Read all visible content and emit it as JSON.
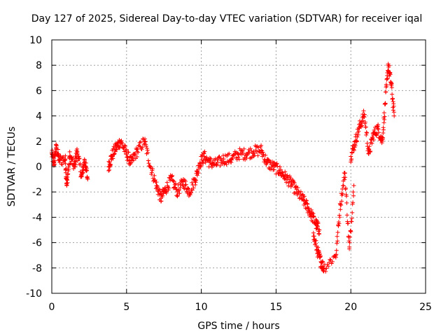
{
  "chart_data": {
    "type": "scatter",
    "title": "Day 127 of 2025, Sidereal Day-to-day VTEC variation (SDTVAR) for receiver iqal",
    "xlabel": "GPS time / hours",
    "ylabel": "SDTVAR / TECUs",
    "xlim": [
      0,
      25
    ],
    "ylim": [
      -10,
      10
    ],
    "xticks": [
      "0",
      "5",
      "10",
      "15",
      "20",
      "25"
    ],
    "yticks": [
      "10",
      "8",
      "6",
      "4",
      "2",
      "0",
      "-2",
      "-4",
      "-6",
      "-8",
      "-10"
    ],
    "grid": true,
    "marker": "+",
    "color": "#ff0000",
    "series": [
      {
        "name": "SDTVAR",
        "trace": [
          [
            0.0,
            1.0
          ],
          [
            0.15,
            0.3
          ],
          [
            0.3,
            1.5
          ],
          [
            0.5,
            0.5
          ],
          [
            0.9,
            0.6
          ],
          [
            1.0,
            -1.5
          ],
          [
            1.2,
            0.8
          ],
          [
            1.5,
            0.0
          ],
          [
            1.7,
            1.2
          ],
          [
            2.0,
            -0.8
          ],
          [
            2.2,
            0.5
          ],
          [
            2.4,
            -1.0
          ],
          [
            3.8,
            0.0
          ],
          [
            4.0,
            0.8
          ],
          [
            4.3,
            1.5
          ],
          [
            4.6,
            2.0
          ],
          [
            5.0,
            1.0
          ],
          [
            5.3,
            0.3
          ],
          [
            5.7,
            1.2
          ],
          [
            6.2,
            2.0
          ],
          [
            6.6,
            0.0
          ],
          [
            7.0,
            -1.5
          ],
          [
            7.3,
            -2.5
          ],
          [
            7.6,
            -1.8
          ],
          [
            8.0,
            -1.0
          ],
          [
            8.4,
            -2.0
          ],
          [
            8.8,
            -1.2
          ],
          [
            9.2,
            -2.0
          ],
          [
            9.6,
            -1.0
          ],
          [
            9.9,
            0.3
          ],
          [
            10.2,
            0.8
          ],
          [
            10.6,
            0.3
          ],
          [
            11.0,
            0.2
          ],
          [
            11.5,
            0.6
          ],
          [
            12.0,
            0.6
          ],
          [
            12.5,
            1.0
          ],
          [
            13.0,
            1.0
          ],
          [
            13.5,
            1.2
          ],
          [
            14.0,
            1.3
          ],
          [
            14.4,
            0.3
          ],
          [
            14.8,
            0.0
          ],
          [
            15.2,
            -0.3
          ],
          [
            15.6,
            -0.8
          ],
          [
            16.0,
            -1.3
          ],
          [
            16.4,
            -2.0
          ],
          [
            16.8,
            -2.6
          ],
          [
            17.1,
            -3.2
          ],
          [
            17.4,
            -3.9
          ],
          [
            17.7,
            -4.6
          ],
          [
            17.9,
            -5.0
          ],
          [
            17.5,
            -5.5
          ],
          [
            17.8,
            -6.8
          ],
          [
            18.0,
            -7.5
          ],
          [
            18.2,
            -8.0
          ],
          [
            19.0,
            -7.0
          ],
          [
            19.3,
            -3.0
          ],
          [
            19.6,
            -0.5
          ],
          [
            19.9,
            -6.5
          ],
          [
            20.2,
            -1.5
          ],
          [
            20.0,
            0.8
          ],
          [
            20.3,
            2.0
          ],
          [
            20.6,
            3.2
          ],
          [
            20.9,
            4.1
          ],
          [
            21.2,
            1.0
          ],
          [
            21.5,
            2.5
          ],
          [
            21.8,
            3.0
          ],
          [
            22.1,
            2.0
          ],
          [
            22.3,
            5.0
          ],
          [
            22.5,
            8.0
          ],
          [
            22.7,
            6.5
          ],
          [
            22.9,
            4.0
          ]
        ]
      }
    ]
  }
}
